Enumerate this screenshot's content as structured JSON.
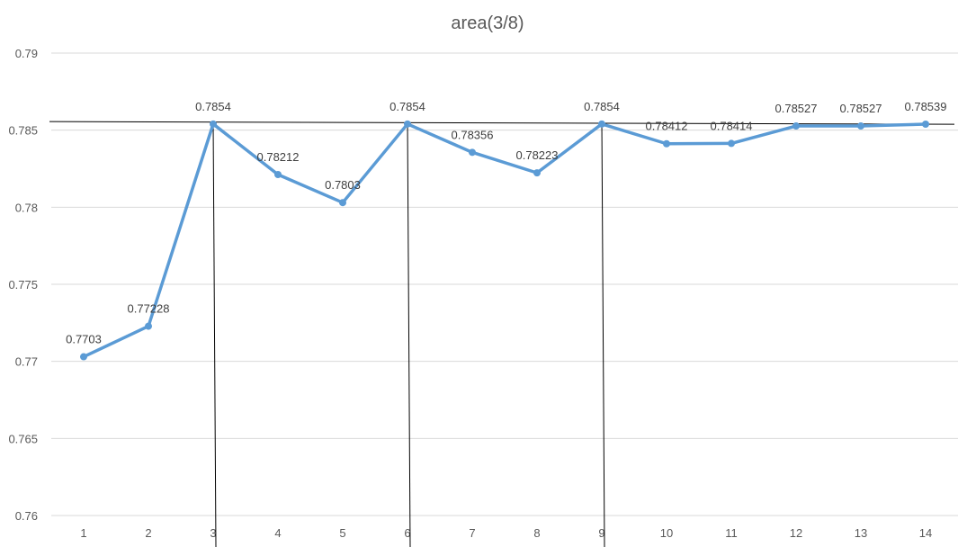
{
  "chart_data": {
    "type": "line",
    "title": "area(3/8)",
    "xlabel": "",
    "ylabel": "",
    "categories": [
      "1",
      "2",
      "3",
      "4",
      "5",
      "6",
      "7",
      "8",
      "9",
      "10",
      "11",
      "12",
      "13",
      "14"
    ],
    "ylim": [
      0.76,
      0.79
    ],
    "yticks": [
      0.76,
      0.765,
      0.77,
      0.775,
      0.78,
      0.785,
      0.79
    ],
    "ytick_labels": [
      "0.76",
      "0.765",
      "0.77",
      "0.775",
      "0.78",
      "0.785",
      "0.79"
    ],
    "grid": true,
    "legend": "none",
    "series": [
      {
        "color": "#5b9bd5",
        "values": [
          0.7703,
          0.77228,
          0.7854,
          0.78212,
          0.7803,
          0.7854,
          0.78356,
          0.78223,
          0.7854,
          0.78412,
          0.78414,
          0.78527,
          0.78527,
          0.78539
        ],
        "data_labels": [
          "0.7703",
          "0.77228",
          "0.7854",
          "0.78212",
          "0.7803",
          "0.7854",
          "0.78356",
          "0.78223",
          "0.7854",
          "0.78412",
          "0.78414",
          "0.78527",
          "0.78527",
          "0.78539"
        ]
      }
    ],
    "annotations": {
      "horizontal_line": {
        "y": 0.7855,
        "color": "#000000"
      },
      "vertical_lines": {
        "x": [
          "3",
          "6",
          "9"
        ],
        "color": "#000000"
      }
    }
  }
}
